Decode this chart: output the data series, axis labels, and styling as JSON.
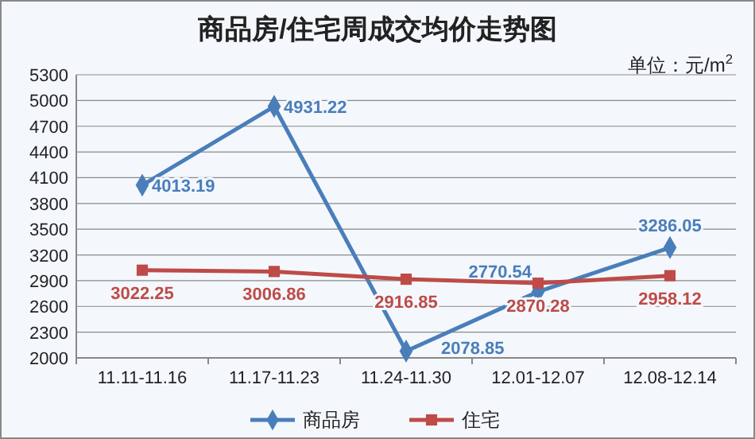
{
  "chart_data": {
    "type": "line",
    "title": "商品房/住宅周成交均价走势图",
    "annotations": [
      "单位：元/m$^{2}$"
    ],
    "categories": [
      "11.11-11.16",
      "11.17-11.23",
      "11.24-11.30",
      "12.01-12.07",
      "12.08-12.14"
    ],
    "series": [
      {
        "name": "商品房",
        "color": "#4a7ebb",
        "marker": "diamond",
        "values": [
          4013.19,
          4931.22,
          2078.85,
          2770.54,
          3286.05
        ]
      },
      {
        "name": "住宅",
        "color": "#be4b48",
        "marker": "square",
        "values": [
          3022.25,
          3006.86,
          2916.85,
          2870.28,
          2958.12
        ]
      }
    ],
    "ylim": [
      2000,
      5300
    ],
    "yticks": [
      2000,
      2300,
      2600,
      2900,
      3200,
      3500,
      3800,
      4100,
      4400,
      4700,
      5000,
      5300
    ],
    "grid": "y",
    "legend": "bottom",
    "data_labels": true,
    "line_style": "solid"
  }
}
